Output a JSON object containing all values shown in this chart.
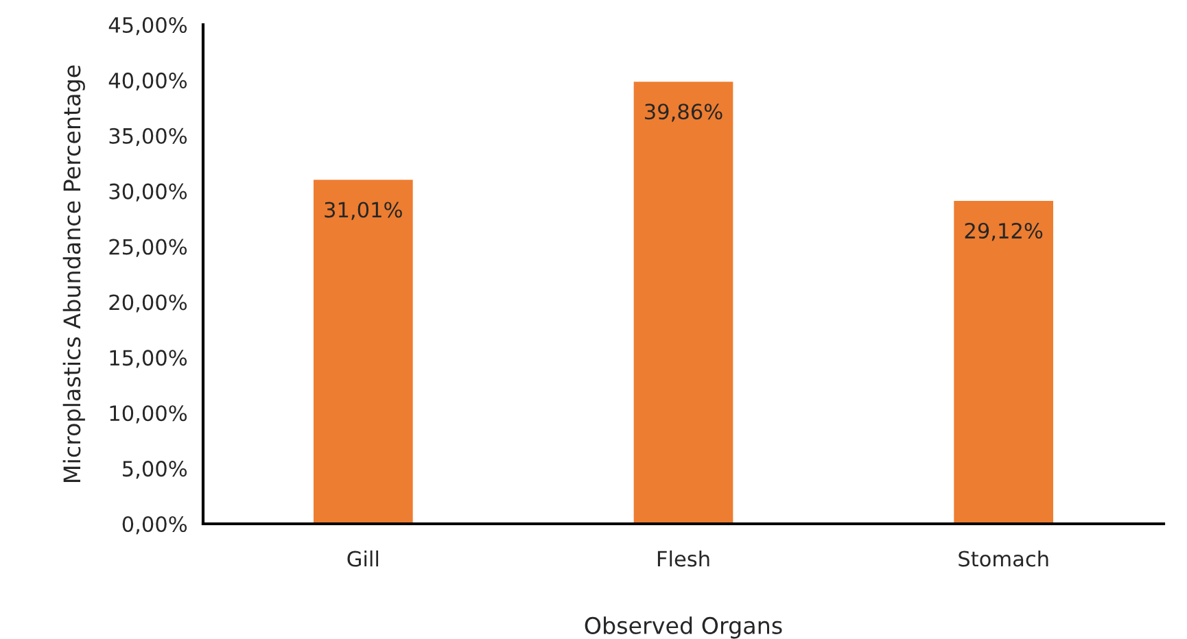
{
  "chart_data": {
    "type": "bar",
    "xlabel": "Observed Organs",
    "ylabel": "Microplastics Abundance Percentage",
    "categories": [
      "Gill",
      "Flesh",
      "Stomach"
    ],
    "values": [
      31.01,
      39.86,
      29.12
    ],
    "value_labels": [
      "31,01%",
      "39,86%",
      "29,12%"
    ],
    "color": "#ed7d31",
    "ylim": [
      0,
      45
    ],
    "yticks": [
      {
        "value": 0,
        "label": "0,00%"
      },
      {
        "value": 5,
        "label": "5,00%"
      },
      {
        "value": 10,
        "label": "10,00%"
      },
      {
        "value": 15,
        "label": "15,00%"
      },
      {
        "value": 20,
        "label": "20,00%"
      },
      {
        "value": 25,
        "label": "25,00%"
      },
      {
        "value": 30,
        "label": "30,00%"
      },
      {
        "value": 35,
        "label": "35,00%"
      },
      {
        "value": 40,
        "label": "40,00%"
      },
      {
        "value": 45,
        "label": "45,00%"
      }
    ],
    "grid": false
  }
}
